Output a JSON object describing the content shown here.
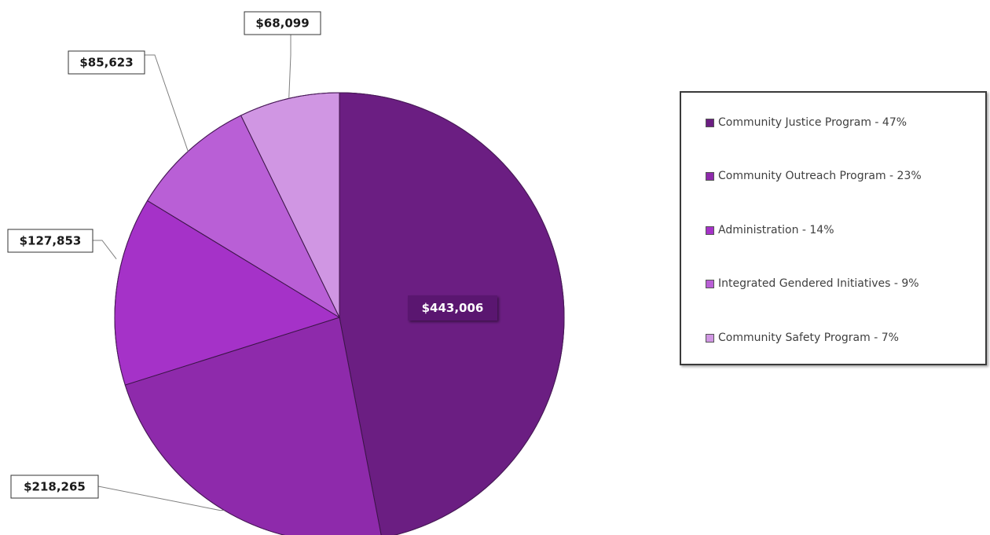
{
  "chart_data": {
    "type": "pie",
    "slices": [
      {
        "label": "Community Justice Program  - 47%",
        "value": 443006,
        "value_label": "$443,006",
        "color": "#6b1e82"
      },
      {
        "label": "Community Outreach Program - 23%",
        "value": 218265,
        "value_label": "$218,265",
        "color": "#8e2aab"
      },
      {
        "label": "Administration - 14%",
        "value": 127853,
        "value_label": "$127,853",
        "color": "#a532c8"
      },
      {
        "label": "Integrated Gendered Initiatives - 9%",
        "value": 85623,
        "value_label": "$85,623",
        "color": "#b95fd6"
      },
      {
        "label": "Community Safety Program - 7%",
        "value": 68099,
        "value_label": "$68,099",
        "color": "#d096e3"
      }
    ],
    "start_angle": "12 o'clock",
    "direction": "clockwise",
    "legend_position": "right"
  }
}
